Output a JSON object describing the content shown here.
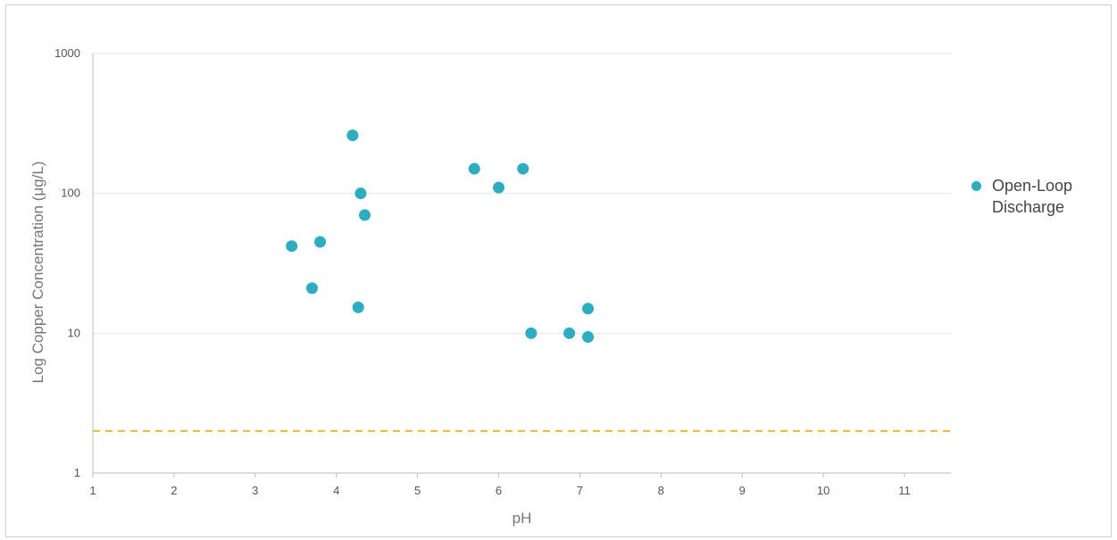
{
  "chart_data": {
    "type": "scatter",
    "title": "",
    "xlabel": "pH",
    "ylabel": "Log Copper Concentration (μg/L)",
    "x_scale": "linear",
    "y_scale": "log",
    "xlim": [
      1,
      11.5
    ],
    "ylim": [
      1,
      1000
    ],
    "x_ticks": [
      "1",
      "2",
      "3",
      "4",
      "5",
      "6",
      "7",
      "8",
      "9",
      "10",
      "11"
    ],
    "y_ticks": [
      "1",
      "10",
      "100",
      "1000"
    ],
    "grid": "horizontal",
    "legend_position": "right",
    "series": [
      {
        "name": "Open-Loop Discharge",
        "color": "#29aec2",
        "points": [
          {
            "x": 3.45,
            "y": 42
          },
          {
            "x": 3.7,
            "y": 21
          },
          {
            "x": 3.8,
            "y": 45
          },
          {
            "x": 4.2,
            "y": 260
          },
          {
            "x": 4.27,
            "y": 15.3
          },
          {
            "x": 4.3,
            "y": 100
          },
          {
            "x": 4.35,
            "y": 70
          },
          {
            "x": 5.7,
            "y": 150
          },
          {
            "x": 6.0,
            "y": 110
          },
          {
            "x": 6.3,
            "y": 150
          },
          {
            "x": 6.4,
            "y": 10
          },
          {
            "x": 6.87,
            "y": 10
          },
          {
            "x": 7.1,
            "y": 15
          },
          {
            "x": 7.1,
            "y": 9.4
          }
        ]
      }
    ],
    "reference_line": {
      "y": 2,
      "style": "dashed",
      "color": "#f5b82e"
    },
    "colors": {
      "grid": "#e6e6e6",
      "axis": "#bbbbbb"
    }
  }
}
